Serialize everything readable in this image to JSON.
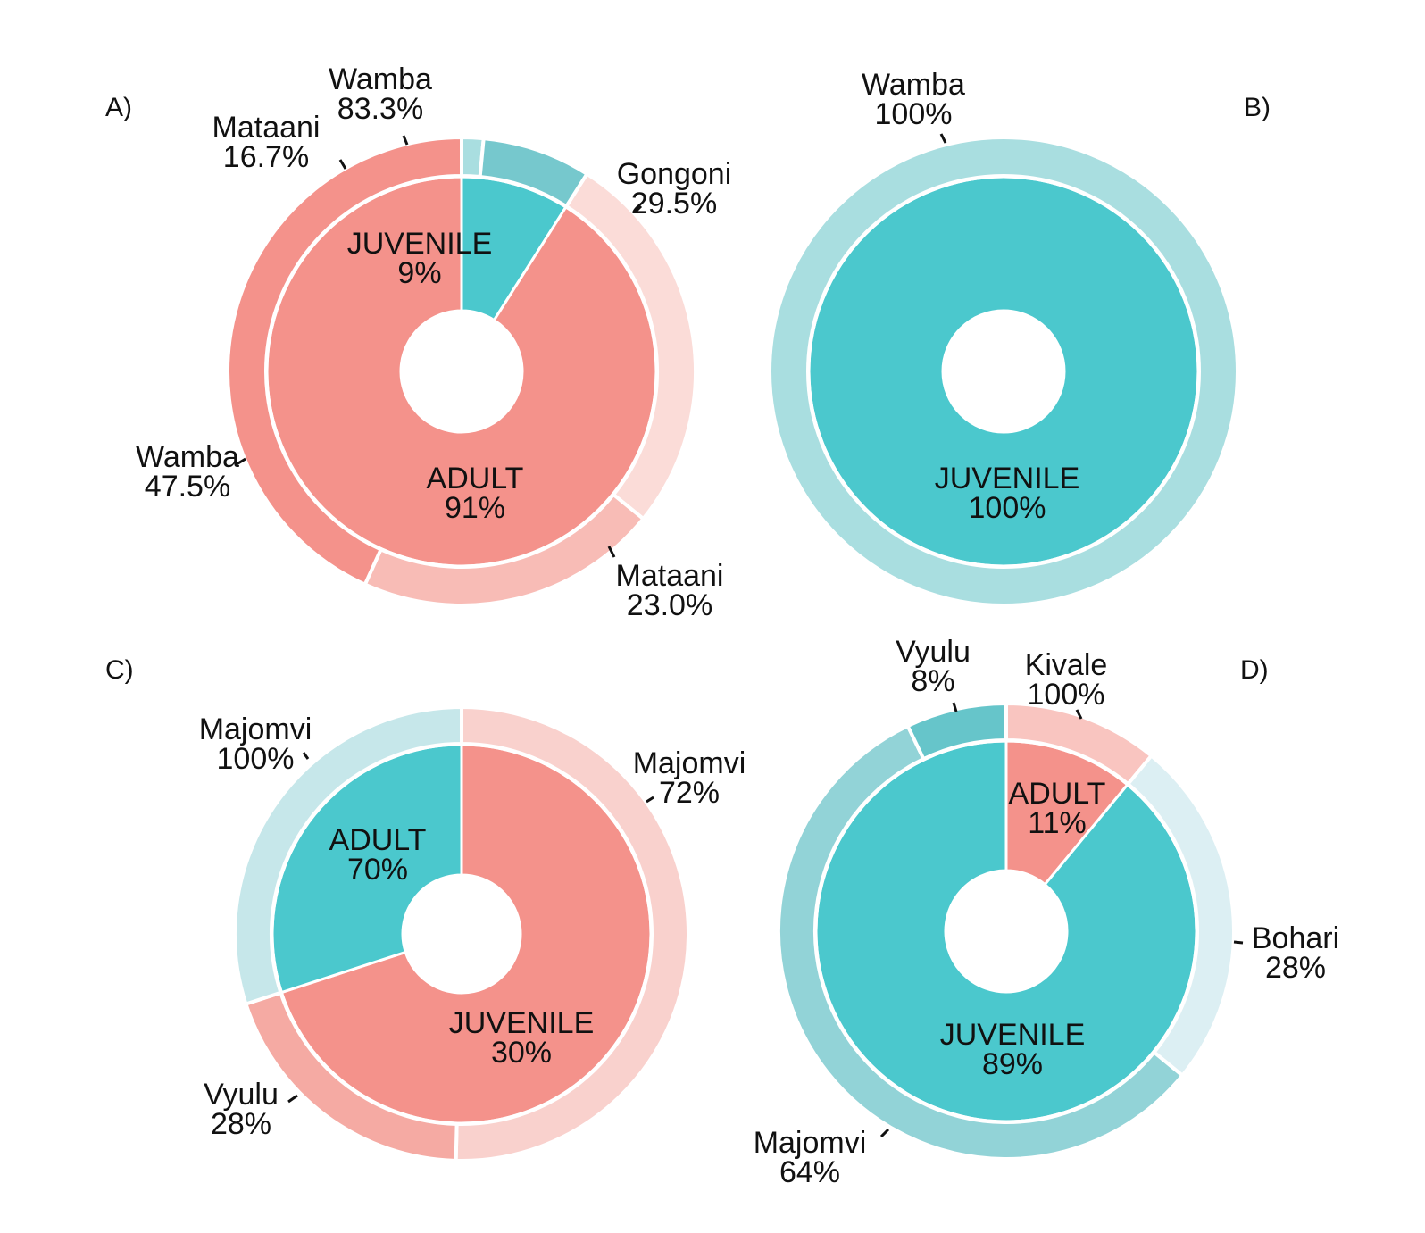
{
  "colors": {
    "adult_inner": "#f4928b",
    "juvenile_inner": "#4bc8cd",
    "separator": "#ffffff",
    "leader": "#111111"
  },
  "chart_data": [
    {
      "panel": "A)",
      "type": "sunburst",
      "inner": [
        {
          "name": "JUVENILE",
          "label": "9%",
          "value": 9,
          "color": "#4bc8cd"
        },
        {
          "name": "ADULT",
          "label": "91%",
          "value": 91,
          "color": "#f4928b"
        }
      ],
      "outer": [
        {
          "group": "ADULT",
          "name": "Gongoni",
          "label": "29.5%",
          "value": 29.5,
          "color": "#fbdcd8"
        },
        {
          "group": "ADULT",
          "name": "Mataani",
          "label": "23.0%",
          "value": 23.0,
          "color": "#f8bcb6"
        },
        {
          "group": "ADULT",
          "name": "Wamba",
          "label": "47.5%",
          "value": 47.5,
          "color": "#f4928b"
        },
        {
          "group": "JUVENILE",
          "name": "Mataani",
          "label": "16.7%",
          "value": 16.7,
          "color": "#a9dee0"
        },
        {
          "group": "JUVENILE",
          "name": "Wamba",
          "label": "83.3%",
          "value": 83.3,
          "color": "#76c8cd"
        }
      ]
    },
    {
      "panel": "B)",
      "type": "sunburst",
      "inner": [
        {
          "name": "JUVENILE",
          "label": "100%",
          "value": 100,
          "color": "#4bc8cd"
        }
      ],
      "outer": [
        {
          "group": "JUVENILE",
          "name": "Wamba",
          "label": "100%",
          "value": 100,
          "color": "#a9dee0"
        }
      ]
    },
    {
      "panel": "C)",
      "type": "sunburst",
      "inner": [
        {
          "name": "ADULT",
          "label": "70%",
          "value": 70,
          "color": "#f4928b"
        },
        {
          "name": "JUVENILE",
          "label": "30%",
          "value": 30,
          "color": "#4bc8cd"
        }
      ],
      "outer": [
        {
          "group": "ADULT",
          "name": "Majomvi",
          "label": "72%",
          "value": 72,
          "color": "#f9d1cd"
        },
        {
          "group": "ADULT",
          "name": "Vyulu",
          "label": "28%",
          "value": 28,
          "color": "#f5aaa3"
        },
        {
          "group": "JUVENILE",
          "name": "Majomvi",
          "label": "100%",
          "value": 100,
          "color": "#c6e7ea"
        }
      ]
    },
    {
      "panel": "D)",
      "type": "sunburst",
      "inner": [
        {
          "name": "ADULT",
          "label": "11%",
          "value": 11,
          "color": "#f4928b"
        },
        {
          "name": "JUVENILE",
          "label": "89%",
          "value": 89,
          "color": "#4bc8cd"
        }
      ],
      "outer": [
        {
          "group": "ADULT",
          "name": "Kivale",
          "label": "100%",
          "value": 100,
          "color": "#f9c5c0"
        },
        {
          "group": "JUVENILE",
          "name": "Bohari",
          "label": "28%",
          "value": 28,
          "color": "#dceff3"
        },
        {
          "group": "JUVENILE",
          "name": "Majomvi",
          "label": "64%",
          "value": 64,
          "color": "#92d3d7"
        },
        {
          "group": "JUVENILE",
          "name": "Vyulu",
          "label": "8%",
          "value": 8,
          "color": "#66c5ca"
        }
      ]
    }
  ]
}
